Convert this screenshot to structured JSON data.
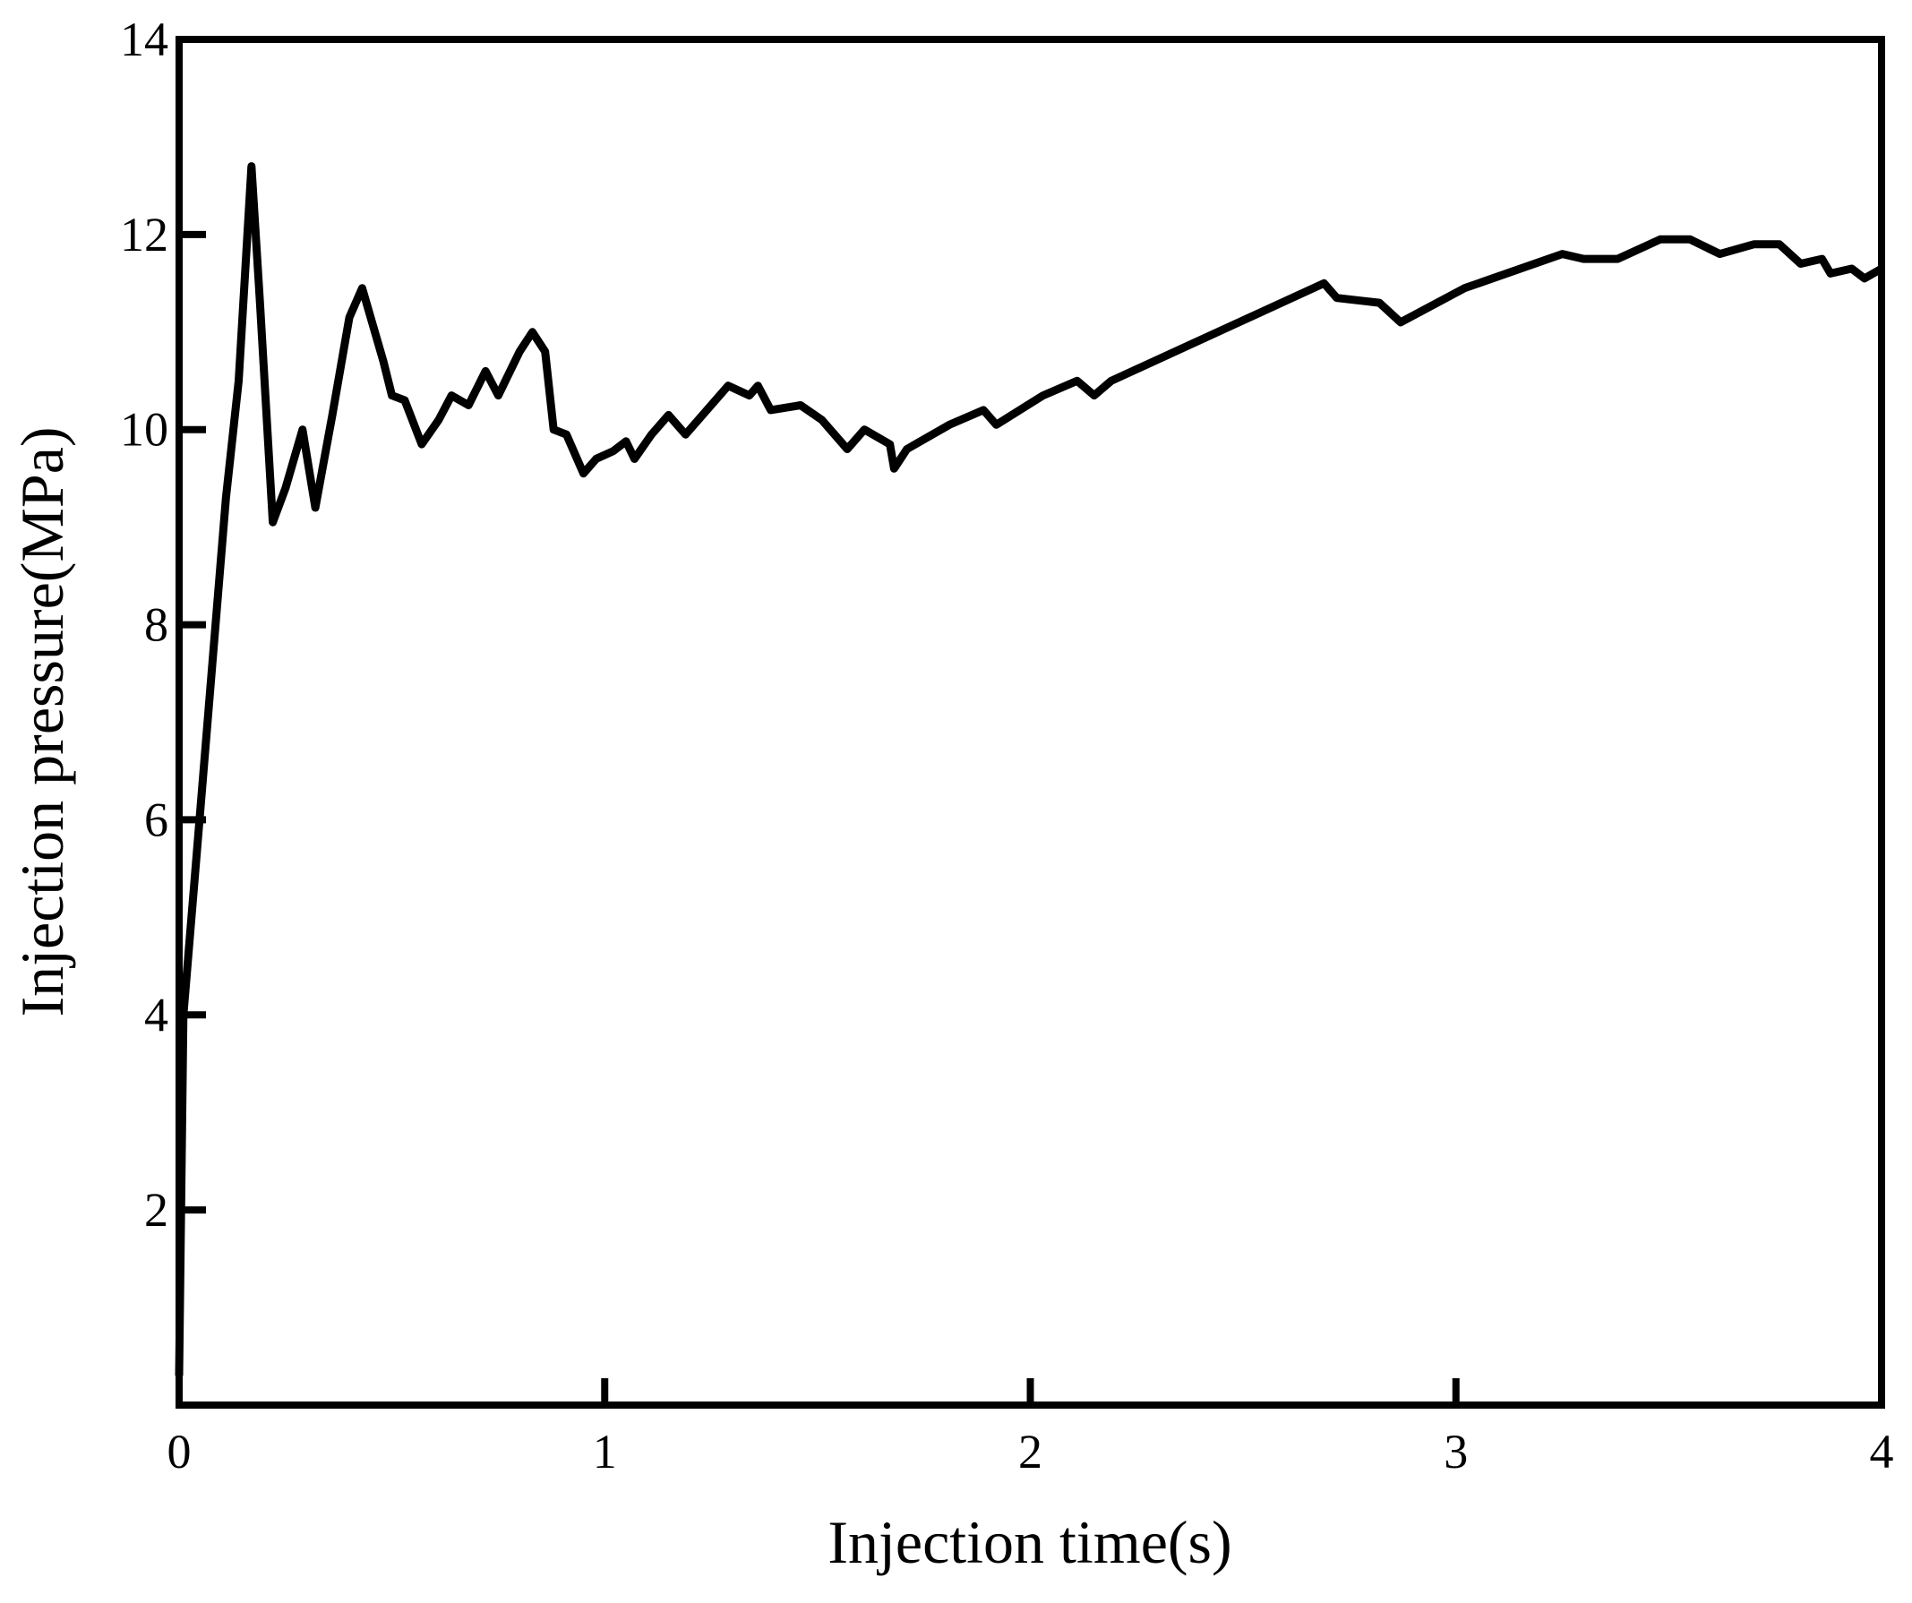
{
  "chart_data": {
    "type": "line",
    "x_label": "Injection time(s)",
    "y_label": "Injection pressure(MPa)",
    "x": [
      0,
      0.01,
      0.046,
      0.11,
      0.14,
      0.17,
      0.19,
      0.22,
      0.25,
      0.29,
      0.32,
      0.36,
      0.4,
      0.43,
      0.48,
      0.5,
      0.53,
      0.57,
      0.61,
      0.64,
      0.68,
      0.72,
      0.75,
      0.8,
      0.83,
      0.86,
      0.88,
      0.91,
      0.95,
      0.98,
      1.02,
      1.05,
      1.07,
      1.11,
      1.15,
      1.19,
      1.24,
      1.29,
      1.34,
      1.36,
      1.39,
      1.46,
      1.51,
      1.57,
      1.61,
      1.67,
      1.68,
      1.71,
      1.81,
      1.89,
      1.92,
      2.03,
      2.11,
      2.15,
      2.19,
      2.44,
      2.69,
      2.72,
      2.82,
      2.87,
      3.02,
      3.25,
      3.3,
      3.38,
      3.48,
      3.55,
      3.62,
      3.7,
      3.76,
      3.81,
      3.86,
      3.88,
      3.93,
      3.96,
      4.0
    ],
    "values": [
      0.3,
      4.0,
      5.9,
      9.3,
      10.5,
      12.7,
      11.3,
      9.05,
      9.4,
      10.0,
      9.2,
      10.15,
      11.15,
      11.45,
      10.7,
      10.35,
      10.3,
      9.85,
      10.1,
      10.35,
      10.25,
      10.6,
      10.35,
      10.8,
      11.0,
      10.8,
      10.0,
      9.95,
      9.55,
      9.7,
      9.78,
      9.88,
      9.7,
      9.95,
      10.15,
      9.95,
      10.2,
      10.45,
      10.35,
      10.45,
      10.2,
      10.25,
      10.1,
      9.8,
      10.0,
      9.85,
      9.6,
      9.8,
      10.05,
      10.2,
      10.05,
      10.35,
      10.5,
      10.35,
      10.5,
      11.0,
      11.5,
      11.35,
      11.3,
      11.1,
      11.45,
      11.8,
      11.75,
      11.75,
      11.95,
      11.95,
      11.8,
      11.9,
      11.9,
      11.7,
      11.75,
      11.6,
      11.65,
      11.55,
      11.65
    ],
    "color": "#000000",
    "xlim": [
      0,
      4
    ],
    "xticks": [
      0,
      1,
      2,
      3,
      4
    ],
    "ylim": [
      0,
      14
    ],
    "yticks": [
      2,
      4,
      6,
      8,
      10,
      12,
      14
    ]
  }
}
